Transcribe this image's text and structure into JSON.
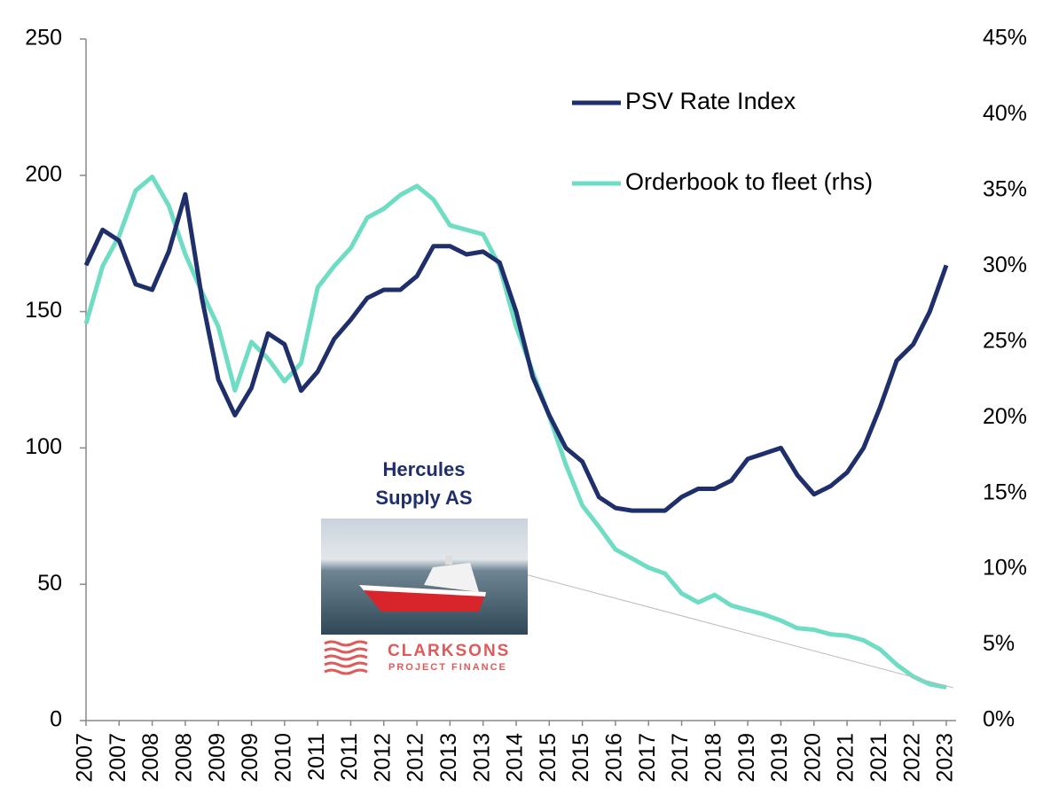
{
  "chart_data": {
    "type": "line",
    "categories": [
      "2007",
      null,
      "2007",
      null,
      "2008",
      null,
      "2008",
      null,
      "2009",
      null,
      "2009",
      null,
      "2010",
      null,
      "2011",
      null,
      "2011",
      null,
      "2012",
      null,
      "2012",
      null,
      "2013",
      null,
      "2013",
      null,
      "2014",
      null,
      "2015",
      null,
      "2015",
      null,
      "2016",
      null,
      "2017",
      null,
      "2017",
      null,
      "2018",
      null,
      "2019",
      null,
      "2019",
      null,
      "2020",
      null,
      "2021",
      null,
      "2021",
      null,
      "2022",
      null,
      "2023"
    ],
    "series": [
      {
        "name": "PSV Rate Index",
        "color": "#1f2f6b",
        "values": [
          167,
          180,
          176,
          160,
          158,
          172,
          193,
          155,
          125,
          112,
          122,
          142,
          138,
          121,
          128,
          140,
          147,
          155,
          158,
          158,
          163,
          174,
          174,
          171,
          172,
          168,
          150,
          126,
          112,
          100,
          95,
          82,
          78,
          77,
          77,
          77,
          82,
          85,
          85,
          88,
          96,
          98,
          100,
          90,
          83,
          86,
          91,
          100,
          115,
          132,
          138,
          150,
          167
        ]
      },
      {
        "name": "Orderbook to fleet (rhs)",
        "color": "#6fdcc4",
        "axis": "y2",
        "values": [
          26.2,
          30,
          32,
          35,
          35.9,
          34,
          30.8,
          28.3,
          26,
          21.8,
          25,
          23.9,
          22.4,
          23.6,
          28.6,
          30,
          31.2,
          33.2,
          33.8,
          34.7,
          35.3,
          34.4,
          32.7,
          32.4,
          32.1,
          30,
          26,
          23,
          20.1,
          16.9,
          14.2,
          12.8,
          11.3,
          10.7,
          10.1,
          9.7,
          8.4,
          7.8,
          8.3,
          7.6,
          7.3,
          7,
          6.6,
          6.1,
          6,
          5.7,
          5.6,
          5.3,
          4.7,
          3.7,
          2.9,
          2.4,
          2.2
        ]
      }
    ],
    "ylim": [
      0,
      250
    ],
    "yticks": [
      0,
      50,
      100,
      150,
      200,
      250
    ],
    "y2lim": [
      0,
      45
    ],
    "y2ticks": [
      {
        "value": 0,
        "label": "0%"
      },
      {
        "value": 5,
        "label": "5%"
      },
      {
        "value": 10,
        "label": "10%"
      },
      {
        "value": 15,
        "label": "15%"
      },
      {
        "value": 20,
        "label": "20%"
      },
      {
        "value": 25,
        "label": "25%"
      },
      {
        "value": 30,
        "label": "30%"
      },
      {
        "value": 35,
        "label": "35%"
      },
      {
        "value": 40,
        "label": "40%"
      },
      {
        "value": 45,
        "label": "45%"
      }
    ],
    "legend": "upper right",
    "annotations": [
      "Hercules",
      "Supply AS"
    ],
    "logo": [
      "CLARKSONS",
      "PROJECT FINANCE"
    ]
  }
}
